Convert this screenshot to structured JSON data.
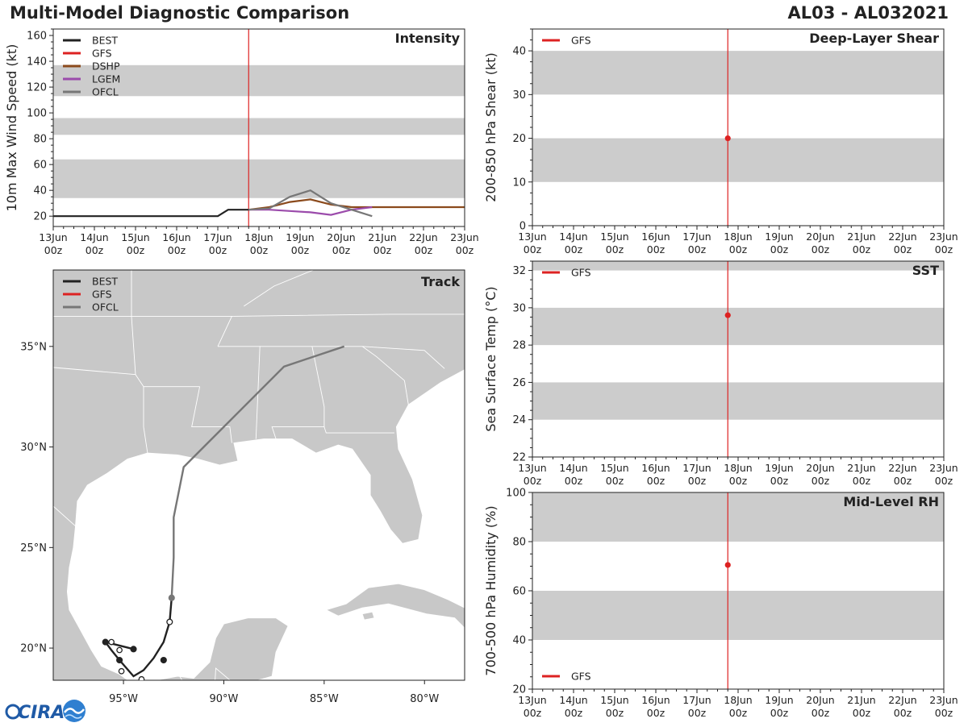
{
  "header": {
    "title": "Multi-Model Diagnostic Comparison",
    "storm_id": "AL03 - AL032021"
  },
  "logo": {
    "text": "CIRA"
  },
  "chart_data": [
    {
      "id": "intensity",
      "type": "line",
      "title": "Intensity",
      "ylabel": "10m Max Wind Speed (kt)",
      "xlabel": "",
      "x_ticks": [
        "13Jun\n00z",
        "14Jun\n00z",
        "15Jun\n00z",
        "16Jun\n00z",
        "17Jun\n00z",
        "18Jun\n00z",
        "19Jun\n00z",
        "20Jun\n00z",
        "21Jun\n00z",
        "22Jun\n00z",
        "23Jun\n00z"
      ],
      "xlim": [
        0,
        10
      ],
      "ylim": [
        12,
        165
      ],
      "y_ticks": [
        20,
        40,
        60,
        80,
        100,
        120,
        140,
        160
      ],
      "bands": [
        [
          34,
          64
        ],
        [
          83,
          96
        ],
        [
          113,
          137
        ]
      ],
      "init_time": 4.75,
      "legend": [
        "BEST",
        "GFS",
        "DSHP",
        "LGEM",
        "OFCL"
      ],
      "series": [
        {
          "name": "BEST",
          "color": "#222222",
          "x": [
            0,
            0.25,
            0.5,
            0.75,
            1,
            1.25,
            1.5,
            1.75,
            2,
            2.25,
            2.5,
            2.75,
            3,
            3.25,
            3.5,
            3.75,
            4,
            4.25,
            4.5,
            4.75
          ],
          "y": [
            20,
            20,
            20,
            20,
            20,
            20,
            20,
            20,
            20,
            20,
            20,
            20,
            20,
            20,
            20,
            20,
            20,
            25,
            25,
            25
          ]
        },
        {
          "name": "GFS",
          "color": "#dd2222",
          "x": [],
          "y": []
        },
        {
          "name": "DSHP",
          "color": "#8b4a1c",
          "x": [
            4.75,
            5,
            5.25,
            5.75,
            6.25,
            6.75,
            7.25,
            7.75,
            8.25,
            8.75,
            9.25,
            9.75,
            10
          ],
          "y": [
            25,
            26,
            27,
            31,
            33,
            29,
            27,
            27,
            27,
            27,
            27,
            27,
            27
          ]
        },
        {
          "name": "LGEM",
          "color": "#9b4bab",
          "x": [
            4.75,
            5.25,
            5.75,
            6.25,
            6.75,
            7.25,
            7.75
          ],
          "y": [
            25,
            25,
            24,
            23,
            21,
            25,
            27
          ]
        },
        {
          "name": "OFCL",
          "color": "#777777",
          "x": [
            4.75,
            5.25,
            5.75,
            6.25,
            6.75,
            7.25,
            7.75
          ],
          "y": [
            25,
            26,
            35,
            40,
            30,
            25,
            20
          ]
        }
      ]
    },
    {
      "id": "track",
      "type": "scatter",
      "title": "Track",
      "xlim": [
        -98.5,
        -78
      ],
      "ylim": [
        18.4,
        38.8
      ],
      "x_ticks": [
        -95,
        -90,
        -85,
        -80
      ],
      "x_tick_labels": [
        "95°W",
        "90°W",
        "85°W",
        "80°W"
      ],
      "y_ticks": [
        20,
        25,
        30,
        35
      ],
      "y_tick_labels": [
        "20°N",
        "25°N",
        "30°N",
        "35°N"
      ],
      "legend": [
        "BEST",
        "GFS",
        "OFCL"
      ],
      "series": [
        {
          "name": "BEST",
          "color": "#222222",
          "lon": [
            -94.5,
            -95.3,
            -95.9,
            -95.6,
            -95.2,
            -94.5,
            -94.0,
            -93.5,
            -93.0,
            -92.7,
            -92.6
          ],
          "lat": [
            19.95,
            20.15,
            20.3,
            19.9,
            19.4,
            18.6,
            18.9,
            19.5,
            20.3,
            21.3,
            22.5
          ],
          "markers": [
            {
              "lon": -94.5,
              "lat": 19.95,
              "filled": true
            },
            {
              "lon": -95.9,
              "lat": 20.3,
              "filled": true
            },
            {
              "lon": -95.2,
              "lat": 19.4,
              "filled": true
            },
            {
              "lon": -93.0,
              "lat": 19.4,
              "filled": true
            },
            {
              "lon": -92.7,
              "lat": 21.3,
              "filled": false
            }
          ]
        },
        {
          "name": "OFCL",
          "color": "#777777",
          "lon": [
            -92.6,
            -92.5,
            -92.5,
            -92.0,
            -87.0,
            -84.0
          ],
          "lat": [
            22.5,
            24.5,
            26.5,
            29.0,
            34.0,
            35.0
          ],
          "markers": [
            {
              "lon": -92.6,
              "lat": 22.5,
              "filled": true
            }
          ]
        },
        {
          "name": "GFS",
          "color": "#dd2222",
          "lon": [],
          "lat": [],
          "markers": []
        }
      ]
    },
    {
      "id": "shear",
      "type": "scatter",
      "title": "Deep-Layer Shear",
      "ylabel": "200-850 hPa Shear (kt)",
      "x_ticks": [
        "13Jun\n00z",
        "14Jun\n00z",
        "15Jun\n00z",
        "16Jun\n00z",
        "17Jun\n00z",
        "18Jun\n00z",
        "19Jun\n00z",
        "20Jun\n00z",
        "21Jun\n00z",
        "22Jun\n00z",
        "23Jun\n00z"
      ],
      "xlim": [
        0,
        10
      ],
      "ylim": [
        0,
        45
      ],
      "y_ticks": [
        0,
        10,
        20,
        30,
        40
      ],
      "bands": [
        [
          10,
          20
        ],
        [
          30,
          40
        ]
      ],
      "init_time": 4.75,
      "legend": [
        "GFS"
      ],
      "legend_position": "top-left",
      "series": [
        {
          "name": "GFS",
          "color": "#dd2222",
          "x": [
            4.75
          ],
          "y": [
            20
          ]
        }
      ]
    },
    {
      "id": "sst",
      "type": "scatter",
      "title": "SST",
      "ylabel": "Sea Surface Temp (°C)",
      "x_ticks": [
        "13Jun\n00z",
        "14Jun\n00z",
        "15Jun\n00z",
        "16Jun\n00z",
        "17Jun\n00z",
        "18Jun\n00z",
        "19Jun\n00z",
        "20Jun\n00z",
        "21Jun\n00z",
        "22Jun\n00z",
        "23Jun\n00z"
      ],
      "xlim": [
        0,
        10
      ],
      "ylim": [
        22,
        32.5
      ],
      "y_ticks": [
        22,
        24,
        26,
        28,
        30,
        32
      ],
      "bands": [
        [
          24,
          26
        ],
        [
          28,
          30
        ],
        [
          32,
          34
        ]
      ],
      "init_time": 4.75,
      "legend": [
        "GFS"
      ],
      "legend_position": "top-left",
      "series": [
        {
          "name": "GFS",
          "color": "#dd2222",
          "x": [
            4.75
          ],
          "y": [
            29.6
          ]
        }
      ]
    },
    {
      "id": "rh",
      "type": "scatter",
      "title": "Mid-Level RH",
      "ylabel": "700-500 hPa Humidity (%)",
      "x_ticks": [
        "13Jun\n00z",
        "14Jun\n00z",
        "15Jun\n00z",
        "16Jun\n00z",
        "17Jun\n00z",
        "18Jun\n00z",
        "19Jun\n00z",
        "20Jun\n00z",
        "21Jun\n00z",
        "22Jun\n00z",
        "23Jun\n00z"
      ],
      "xlim": [
        0,
        10
      ],
      "ylim": [
        20,
        100
      ],
      "y_ticks": [
        20,
        40,
        60,
        80,
        100
      ],
      "bands": [
        [
          40,
          60
        ],
        [
          80,
          100
        ]
      ],
      "init_time": 4.75,
      "legend": [
        "GFS"
      ],
      "legend_position": "bottom-left",
      "series": [
        {
          "name": "GFS",
          "color": "#dd2222",
          "x": [
            4.75
          ],
          "y": [
            70.5
          ]
        }
      ]
    }
  ],
  "colors": {
    "band": "#cccccc",
    "land": "#c8c8c8",
    "border": "#ffffff",
    "axis": "#222222",
    "init_line": "#dd2222",
    "logo_blue": "#1f5aa6"
  }
}
